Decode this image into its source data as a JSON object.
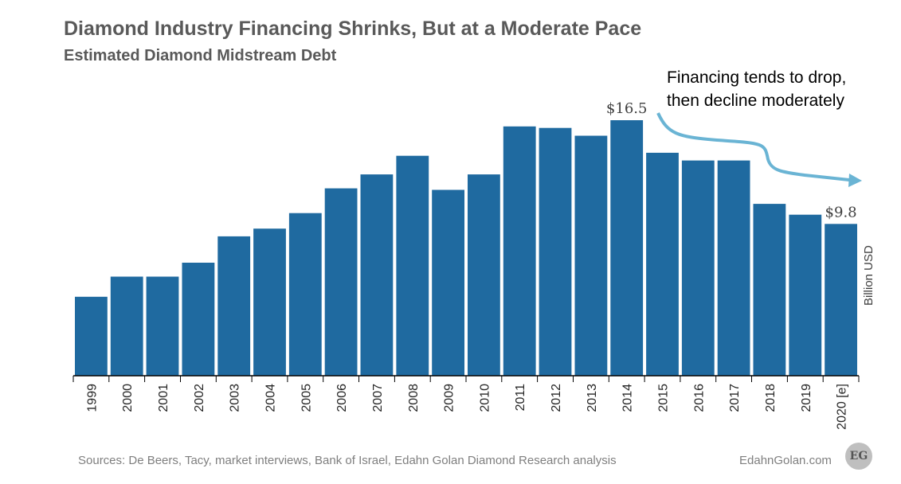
{
  "header": {
    "title": "Diamond Industry Financing Shrinks, But at a Moderate Pace",
    "subtitle": "Estimated Diamond  Midstream Debt"
  },
  "annotation": {
    "line1": "Financing tends to drop,",
    "line2": "then decline moderately"
  },
  "footer": {
    "source": "Sources: De Beers, Tacy, market interviews, Bank of Israel, Edahn Golan Diamond Research analysis",
    "site": "EdahnGolan.com",
    "logo_text": "EG"
  },
  "colors": {
    "bar": "#1f6aa0",
    "arrow": "#6ab4d4",
    "text": "#595959"
  },
  "chart_data": {
    "type": "bar",
    "title": "Diamond Industry Financing Shrinks, But at a Moderate Pace",
    "subtitle": "Estimated Diamond  Midstream Debt",
    "ylabel": "Billion USD",
    "xlabel": "",
    "categories": [
      "1999",
      "2000",
      "2001",
      "2002",
      "2003",
      "2004",
      "2005",
      "2006",
      "2007",
      "2008",
      "2009",
      "2010",
      "2011",
      "2012",
      "2013",
      "2014",
      "2015",
      "2016",
      "2017",
      "2018",
      "2019",
      "2020 [e]"
    ],
    "values": [
      5.1,
      6.4,
      6.4,
      7.3,
      9.0,
      9.5,
      10.5,
      12.1,
      13.0,
      14.2,
      12.0,
      13.0,
      16.1,
      16.0,
      15.5,
      16.5,
      14.4,
      13.9,
      13.9,
      11.1,
      10.4,
      9.8
    ],
    "data_labels": [
      {
        "category": "2014",
        "text": "$16.5"
      },
      {
        "category": "2020 [e]",
        "text": "$9.8"
      }
    ],
    "ylim": [
      0,
      16.5
    ],
    "grid": false,
    "legend": "none"
  }
}
